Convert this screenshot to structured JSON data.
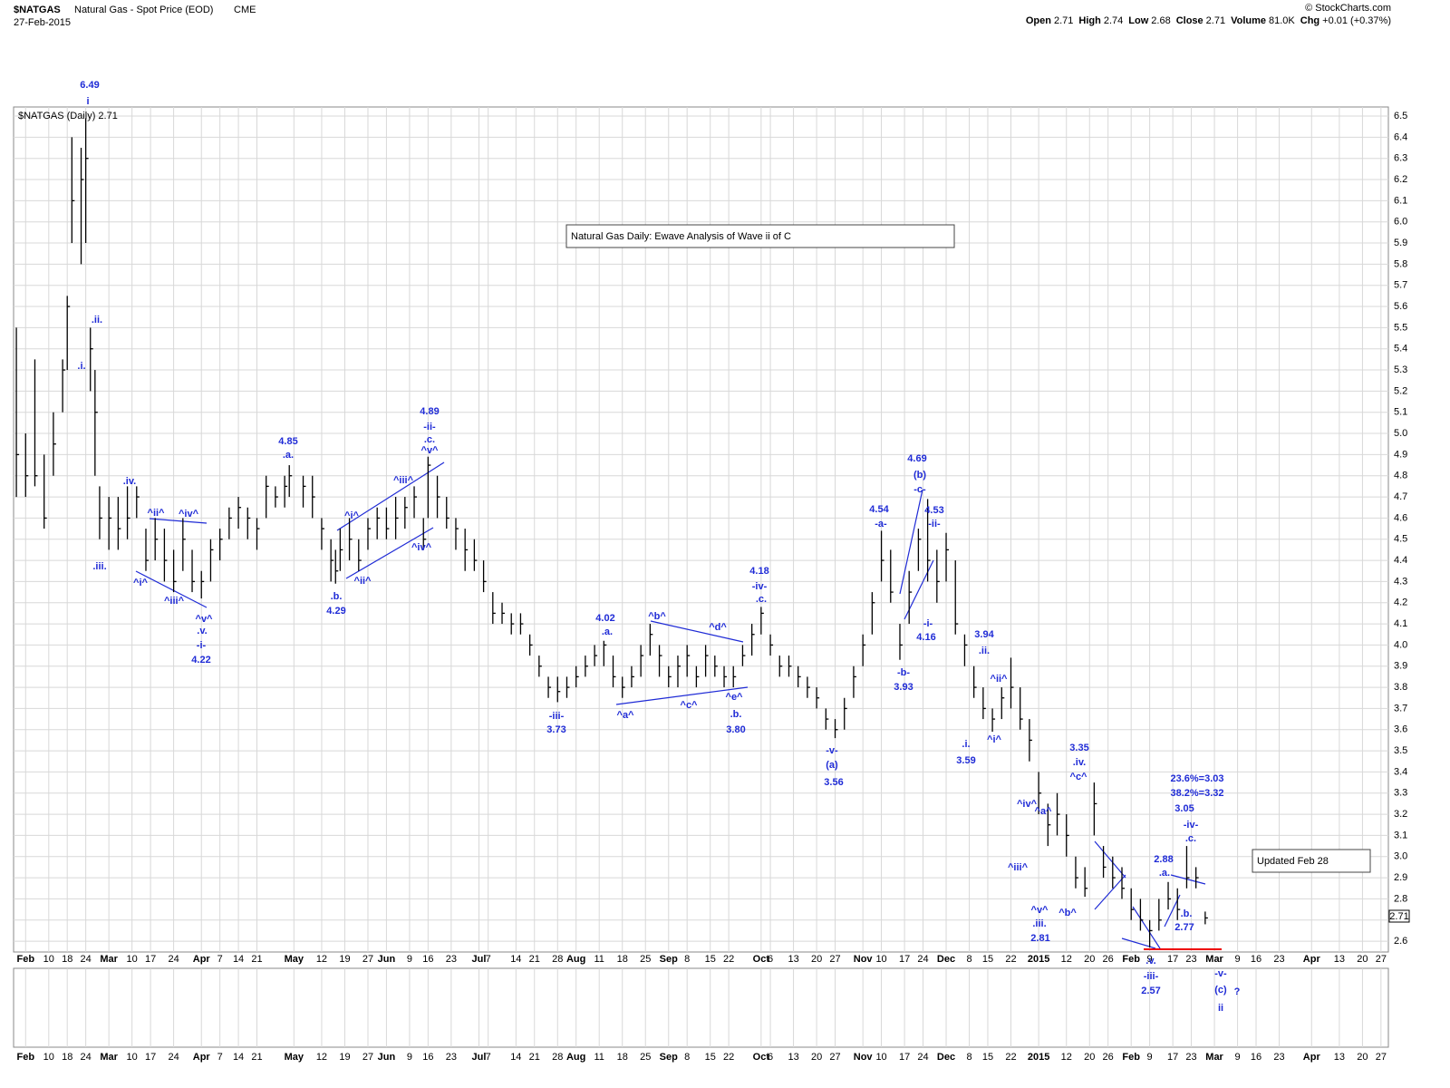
{
  "header": {
    "symbol": "$NATGAS",
    "instrument": "Natural Gas - Spot Price (EOD)",
    "exchange": "CME",
    "date": "27-Feb-2015",
    "copyright": "© StockCharts.com",
    "quote": [
      {
        "label": "Open",
        "value": "2.71"
      },
      {
        "label": "High",
        "value": "2.74"
      },
      {
        "label": "Low",
        "value": "2.68"
      },
      {
        "label": "Close",
        "value": "2.71"
      },
      {
        "label": "Volume",
        "value": "81.0K"
      },
      {
        "label": "Chg",
        "value": "+0.01 (+0.37%)"
      }
    ]
  },
  "chart_data": {
    "type": "ohlc",
    "title": "Natural Gas Daily: Ewave Analysis of Wave ii of C",
    "note": "Updated Feb 28",
    "legend": "$NATGAS (Daily) 2.71",
    "last_price": "2.71",
    "color": "#000000",
    "grid": true,
    "xlim": [
      -0.6,
      296.6
    ],
    "ylim": [
      2.549,
      6.543
    ],
    "xticks": [
      {
        "value": 2,
        "label": "Feb"
      },
      {
        "value": 7,
        "label": "10"
      },
      {
        "value": 11,
        "label": "18"
      },
      {
        "value": 15,
        "label": "24"
      },
      {
        "value": 20,
        "label": "Mar"
      },
      {
        "value": 25,
        "label": "10"
      },
      {
        "value": 29,
        "label": "17"
      },
      {
        "value": 34,
        "label": "24"
      },
      {
        "value": 40,
        "label": "Apr"
      },
      {
        "value": 44,
        "label": "7"
      },
      {
        "value": 48,
        "label": "14"
      },
      {
        "value": 52,
        "label": "21"
      },
      {
        "value": 60,
        "label": "May"
      },
      {
        "value": 66,
        "label": "12"
      },
      {
        "value": 71,
        "label": "19"
      },
      {
        "value": 76,
        "label": "27"
      },
      {
        "value": 80,
        "label": "Jun"
      },
      {
        "value": 85,
        "label": "9"
      },
      {
        "value": 89,
        "label": "16"
      },
      {
        "value": 94,
        "label": "23"
      },
      {
        "value": 100,
        "label": "Jul"
      },
      {
        "value": 102,
        "label": "7"
      },
      {
        "value": 108,
        "label": "14"
      },
      {
        "value": 112,
        "label": "21"
      },
      {
        "value": 117,
        "label": "28"
      },
      {
        "value": 121,
        "label": "Aug"
      },
      {
        "value": 126,
        "label": "11"
      },
      {
        "value": 131,
        "label": "18"
      },
      {
        "value": 136,
        "label": "25"
      },
      {
        "value": 141,
        "label": "Sep"
      },
      {
        "value": 145,
        "label": "8"
      },
      {
        "value": 150,
        "label": "15"
      },
      {
        "value": 154,
        "label": "22"
      },
      {
        "value": 161,
        "label": "Oct"
      },
      {
        "value": 163,
        "label": "6"
      },
      {
        "value": 168,
        "label": "13"
      },
      {
        "value": 173,
        "label": "20"
      },
      {
        "value": 177,
        "label": "27"
      },
      {
        "value": 183,
        "label": "Nov"
      },
      {
        "value": 187,
        "label": "10"
      },
      {
        "value": 192,
        "label": "17"
      },
      {
        "value": 196,
        "label": "24"
      },
      {
        "value": 201,
        "label": "Dec"
      },
      {
        "value": 206,
        "label": "8"
      },
      {
        "value": 210,
        "label": "15"
      },
      {
        "value": 215,
        "label": "22"
      },
      {
        "value": 221,
        "label": "2015"
      },
      {
        "value": 227,
        "label": "12"
      },
      {
        "value": 232,
        "label": "20"
      },
      {
        "value": 236,
        "label": "26"
      },
      {
        "value": 241,
        "label": "Feb"
      },
      {
        "value": 245,
        "label": "9"
      },
      {
        "value": 250,
        "label": "17"
      },
      {
        "value": 254,
        "label": "23"
      },
      {
        "value": 259,
        "label": "Mar"
      },
      {
        "value": 264,
        "label": "9"
      },
      {
        "value": 268,
        "label": "16"
      },
      {
        "value": 273,
        "label": "23"
      },
      {
        "value": 280,
        "label": "Apr"
      },
      {
        "value": 286,
        "label": "13"
      },
      {
        "value": 291,
        "label": "20"
      },
      {
        "value": 295,
        "label": "27"
      }
    ],
    "yticks": [
      2.6,
      2.7,
      2.8,
      2.9,
      {
        "value": 3,
        "label": "3.0"
      },
      3.1,
      3.2,
      3.3,
      3.4,
      3.5,
      3.6,
      3.7,
      3.8,
      3.9,
      {
        "value": 4,
        "label": "4.0"
      },
      4.1,
      4.2,
      4.3,
      4.4,
      4.5,
      4.6,
      4.7,
      4.8,
      4.9,
      {
        "value": 5,
        "label": "5.0"
      },
      5.1,
      5.2,
      5.3,
      5.4,
      5.5,
      5.6,
      5.7,
      5.8,
      5.9,
      {
        "value": 6,
        "label": "6.0"
      },
      6.1,
      6.2,
      6.3,
      6.4,
      6.5
    ],
    "x": [
      0,
      2,
      4,
      6,
      8,
      10,
      11,
      12,
      14,
      15,
      16,
      17,
      18,
      20,
      22,
      24,
      26,
      28,
      30,
      32,
      34,
      36,
      38,
      40,
      42,
      44,
      46,
      48,
      50,
      52,
      54,
      56,
      58,
      59,
      62,
      64,
      66,
      68,
      69,
      70,
      72,
      74,
      76,
      78,
      80,
      82,
      84,
      86,
      88,
      89,
      91,
      93,
      95,
      97,
      99,
      101,
      103,
      105,
      107,
      109,
      111,
      113,
      115,
      117,
      119,
      121,
      123,
      125,
      127,
      129,
      131,
      133,
      135,
      137,
      139,
      141,
      143,
      145,
      147,
      149,
      151,
      153,
      155,
      157,
      159,
      161,
      163,
      165,
      167,
      169,
      171,
      173,
      175,
      177,
      179,
      181,
      183,
      185,
      187,
      189,
      191,
      193,
      195,
      197,
      199,
      201,
      203,
      205,
      207,
      209,
      211,
      213,
      215,
      217,
      219,
      221,
      223,
      225,
      227,
      229,
      231,
      233,
      235,
      237,
      239,
      241,
      243,
      245,
      247,
      249,
      251,
      253,
      255,
      257
    ],
    "high": [
      5.5,
      5.0,
      5.35,
      4.9,
      5.1,
      5.35,
      5.65,
      6.4,
      6.35,
      6.49,
      5.5,
      5.3,
      4.75,
      4.7,
      4.7,
      4.75,
      4.75,
      4.55,
      4.6,
      4.55,
      4.45,
      4.6,
      4.45,
      4.35,
      4.5,
      4.55,
      4.65,
      4.7,
      4.65,
      4.6,
      4.8,
      4.75,
      4.8,
      4.85,
      4.8,
      4.8,
      4.6,
      4.5,
      4.45,
      4.55,
      4.6,
      4.5,
      4.6,
      4.65,
      4.65,
      4.7,
      4.7,
      4.75,
      4.6,
      4.89,
      4.8,
      4.7,
      4.6,
      4.55,
      4.5,
      4.4,
      4.25,
      4.2,
      4.15,
      4.15,
      4.05,
      3.95,
      3.85,
      3.85,
      3.85,
      3.9,
      3.95,
      4.0,
      4.02,
      3.95,
      3.85,
      3.9,
      4.0,
      4.1,
      4.0,
      3.9,
      3.95,
      4.0,
      3.9,
      4.0,
      3.95,
      3.9,
      3.9,
      4.0,
      4.1,
      4.18,
      4.05,
      3.95,
      3.95,
      3.9,
      3.85,
      3.8,
      3.7,
      3.65,
      3.75,
      3.9,
      4.05,
      4.25,
      4.54,
      4.45,
      4.1,
      4.35,
      4.55,
      4.69,
      4.45,
      4.53,
      4.4,
      4.05,
      3.9,
      3.8,
      3.7,
      3.8,
      3.94,
      3.8,
      3.65,
      3.4,
      3.25,
      3.3,
      3.2,
      3.0,
      2.95,
      3.35,
      3.05,
      3.0,
      2.95,
      2.85,
      2.8,
      2.7,
      2.8,
      2.88,
      2.85,
      3.05,
      2.95,
      2.74
    ],
    "low": [
      4.7,
      4.7,
      4.75,
      4.55,
      4.8,
      5.1,
      5.3,
      5.9,
      5.8,
      5.9,
      5.2,
      4.8,
      4.5,
      4.45,
      4.45,
      4.5,
      4.6,
      4.35,
      4.4,
      4.3,
      4.25,
      4.35,
      4.25,
      4.22,
      4.3,
      4.4,
      4.5,
      4.55,
      4.5,
      4.45,
      4.6,
      4.65,
      4.65,
      4.7,
      4.65,
      4.6,
      4.45,
      4.3,
      4.29,
      4.35,
      4.4,
      4.35,
      4.45,
      4.5,
      4.5,
      4.5,
      4.55,
      4.6,
      4.45,
      4.6,
      4.6,
      4.55,
      4.45,
      4.35,
      4.35,
      4.25,
      4.1,
      4.1,
      4.05,
      4.05,
      3.95,
      3.85,
      3.75,
      3.73,
      3.75,
      3.8,
      3.85,
      3.9,
      3.9,
      3.8,
      3.75,
      3.8,
      3.85,
      3.95,
      3.85,
      3.8,
      3.8,
      3.85,
      3.8,
      3.85,
      3.85,
      3.8,
      3.8,
      3.9,
      3.95,
      4.05,
      3.95,
      3.85,
      3.85,
      3.8,
      3.75,
      3.7,
      3.6,
      3.56,
      3.6,
      3.75,
      3.9,
      4.05,
      4.3,
      4.2,
      3.93,
      4.1,
      4.35,
      4.3,
      4.2,
      4.3,
      4.05,
      3.9,
      3.75,
      3.65,
      3.59,
      3.65,
      3.7,
      3.6,
      3.45,
      3.2,
      3.05,
      3.1,
      3.0,
      2.85,
      2.81,
      3.1,
      2.9,
      2.85,
      2.8,
      2.7,
      2.65,
      2.57,
      2.65,
      2.75,
      2.7,
      2.85,
      2.85,
      2.68
    ],
    "close": [
      4.9,
      4.8,
      4.8,
      4.6,
      4.95,
      5.3,
      5.6,
      6.1,
      6.2,
      6.3,
      5.4,
      5.1,
      4.6,
      4.6,
      4.55,
      4.6,
      4.7,
      4.4,
      4.5,
      4.4,
      4.3,
      4.5,
      4.3,
      4.3,
      4.45,
      4.5,
      4.6,
      4.65,
      4.6,
      4.55,
      4.75,
      4.7,
      4.75,
      4.8,
      4.75,
      4.7,
      4.55,
      4.4,
      4.35,
      4.45,
      4.5,
      4.4,
      4.55,
      4.6,
      4.55,
      4.6,
      4.65,
      4.7,
      4.5,
      4.85,
      4.7,
      4.6,
      4.55,
      4.45,
      4.4,
      4.3,
      4.15,
      4.15,
      4.1,
      4.1,
      4.0,
      3.9,
      3.8,
      3.78,
      3.8,
      3.85,
      3.9,
      3.95,
      4.0,
      3.85,
      3.8,
      3.85,
      3.95,
      4.05,
      3.95,
      3.85,
      3.9,
      3.95,
      3.85,
      3.95,
      3.9,
      3.85,
      3.85,
      3.95,
      4.05,
      4.15,
      4.0,
      3.9,
      3.9,
      3.85,
      3.8,
      3.75,
      3.65,
      3.6,
      3.7,
      3.85,
      4.0,
      4.2,
      4.4,
      4.25,
      4.0,
      4.25,
      4.5,
      4.4,
      4.3,
      4.45,
      4.1,
      4.0,
      3.8,
      3.7,
      3.65,
      3.75,
      3.8,
      3.65,
      3.55,
      3.3,
      3.15,
      3.2,
      3.1,
      2.9,
      2.85,
      3.25,
      2.95,
      2.9,
      2.85,
      2.75,
      2.7,
      2.65,
      2.7,
      2.8,
      2.75,
      2.9,
      2.9,
      2.71
    ],
    "annotations": [
      "6.49",
      "i",
      ".ii.",
      ".i.",
      ".iv.",
      ".iii.",
      "^i^",
      "^ii^",
      "^iii^",
      "^iv^",
      "^v^",
      ".v.",
      "-i-",
      "4.22",
      "4.85",
      ".a.",
      ".b.",
      "4.29",
      "^i^",
      "^ii^",
      "^iii^",
      "^iv^",
      "4.89",
      "-ii-",
      ".c.",
      "^v^",
      "-iii-",
      "3.73",
      "4.02",
      ".a.",
      "^a^",
      "^b^",
      "^c^",
      "^d^",
      "^e^",
      ".b.",
      "3.80",
      "4.18",
      "-iv-",
      ".c.",
      "-v-",
      "(a)",
      "3.56",
      "4.54",
      "-a-",
      "4.69",
      "(b)",
      "-c-",
      "4.53",
      "-ii-",
      "-i-",
      "4.16",
      "-b-",
      "3.93",
      "3.94",
      ".ii.",
      "^ii^",
      "^i^",
      ".i.",
      "3.59",
      "3.35",
      ".iv.",
      "^c^",
      "^iv^",
      "^a^",
      "^iii^",
      "^v^",
      ".iii.",
      "2.81",
      "^b^",
      "23.6%=3.03",
      "38.2%=3.32",
      "3.05",
      "-iv-",
      ".c.",
      "2.88",
      ".a.",
      ".b.",
      "2.77",
      ".v.",
      "-iii-",
      "2.57",
      "-v-",
      "(c)",
      "?",
      "ii"
    ]
  }
}
